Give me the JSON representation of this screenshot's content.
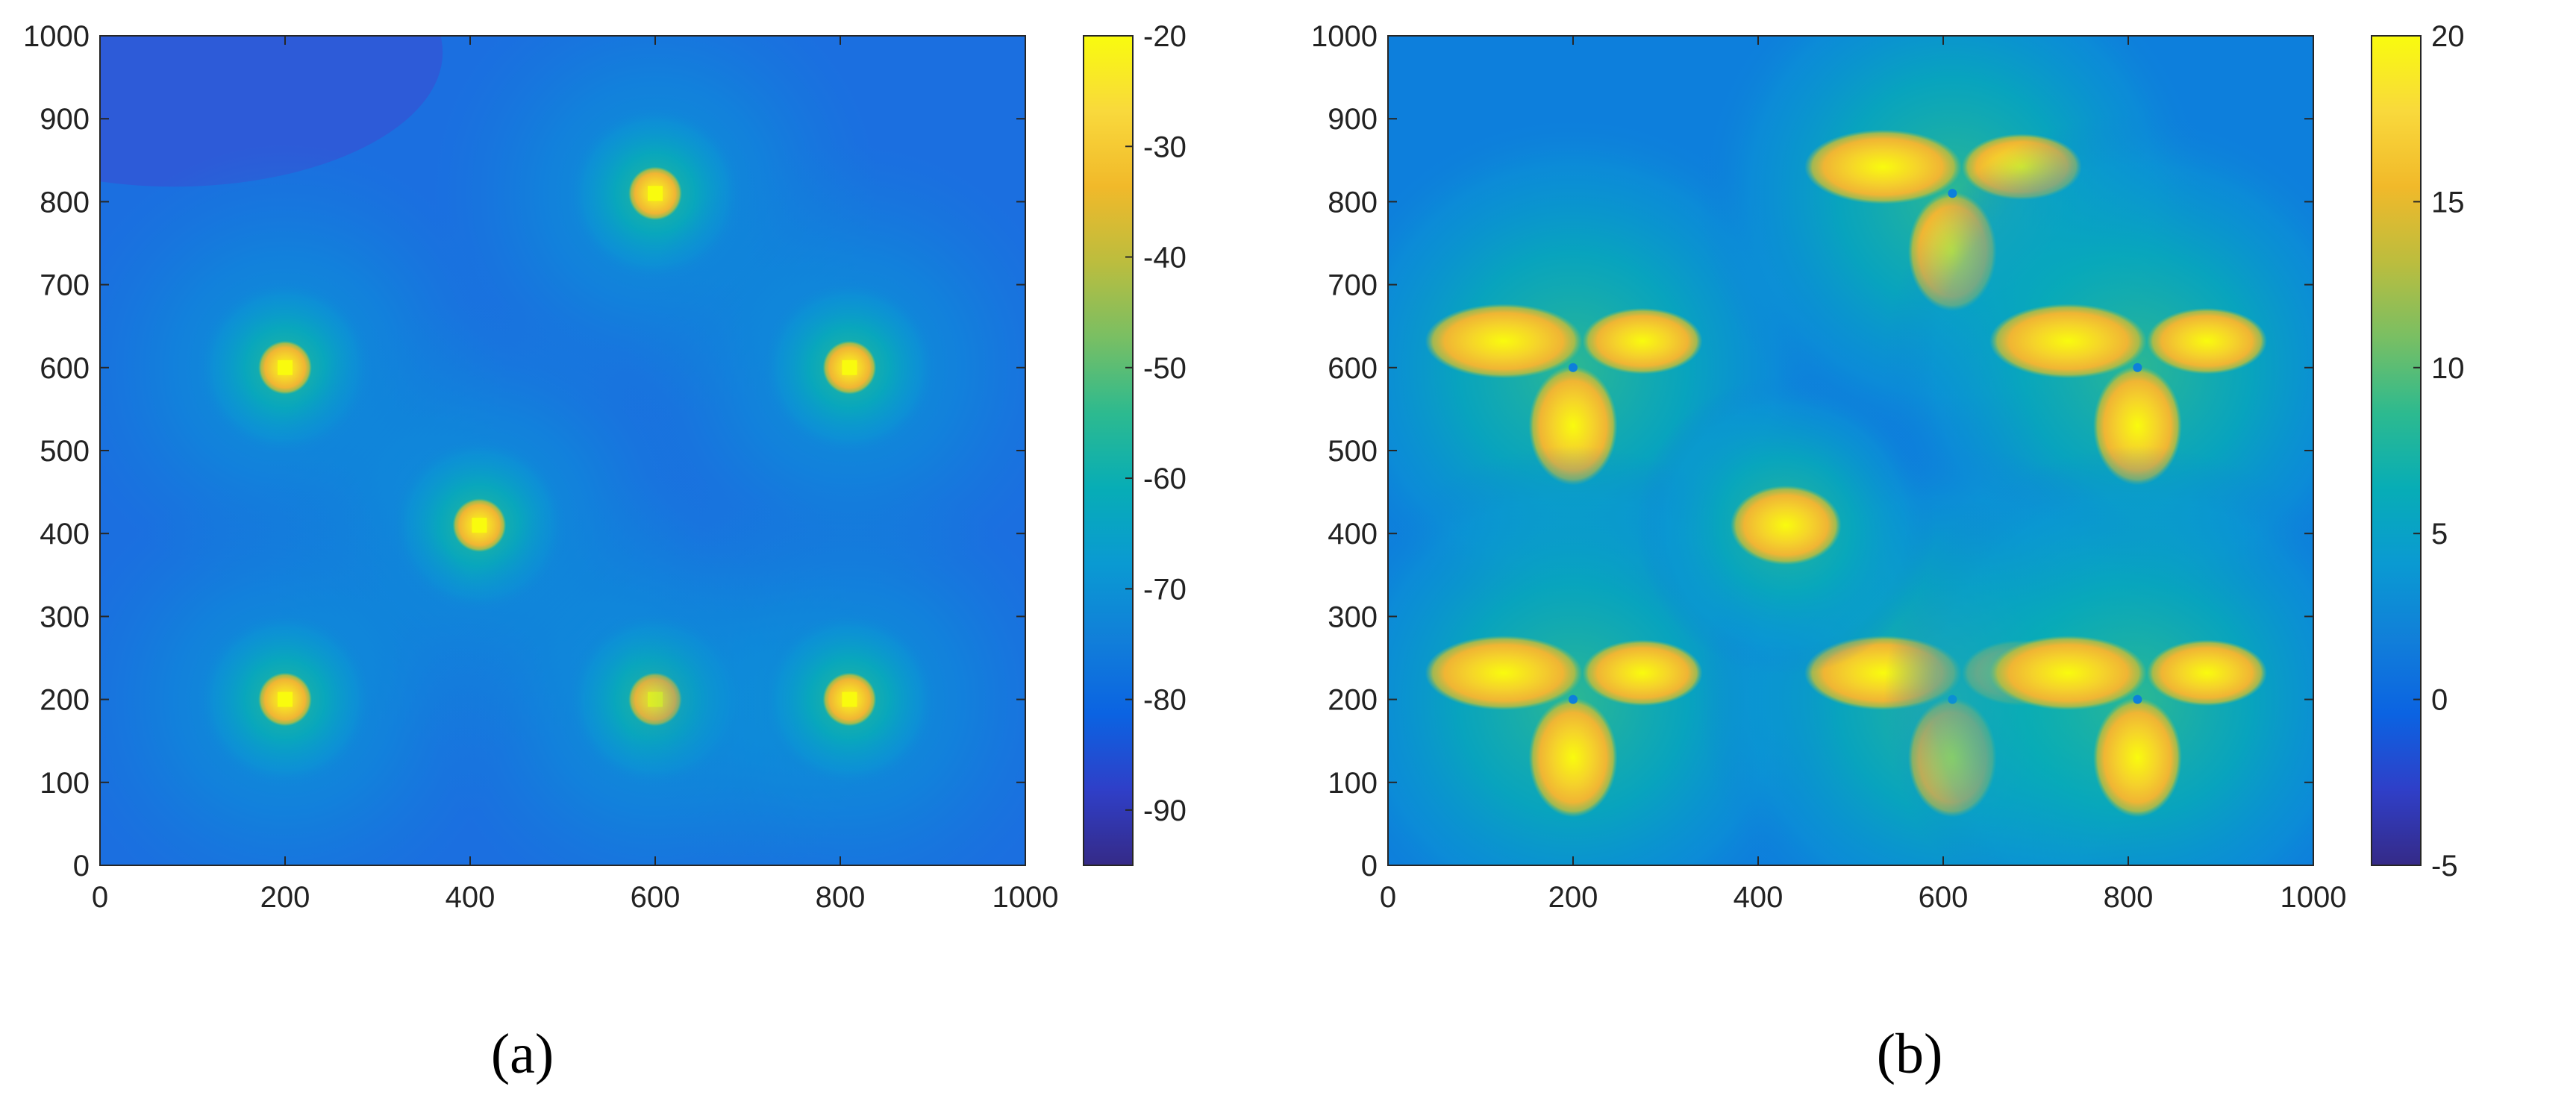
{
  "panels": [
    {
      "label": "(a)",
      "chart_data": {
        "type": "heatmap",
        "title": "",
        "xlabel": "",
        "ylabel": "",
        "xlim": [
          0,
          1000
        ],
        "ylim": [
          0,
          1000
        ],
        "x_ticks": [
          0,
          200,
          400,
          600,
          800,
          1000
        ],
        "y_ticks": [
          0,
          100,
          200,
          300,
          400,
          500,
          600,
          700,
          800,
          900,
          1000
        ],
        "colorbar": {
          "range": [
            -95,
            -20
          ],
          "ticks": [
            -20,
            -30,
            -40,
            -50,
            -60,
            -70,
            -80,
            -90
          ],
          "colormap": "parula"
        },
        "hotspots": [
          {
            "x": 200,
            "y": 600,
            "peak": -20
          },
          {
            "x": 600,
            "y": 810,
            "peak": -20
          },
          {
            "x": 810,
            "y": 600,
            "peak": -20
          },
          {
            "x": 410,
            "y": 410,
            "peak": -20
          },
          {
            "x": 200,
            "y": 200,
            "peak": -20
          },
          {
            "x": 600,
            "y": 200,
            "peak": -20
          },
          {
            "x": 810,
            "y": 200,
            "peak": -20
          }
        ]
      }
    },
    {
      "label": "(b)",
      "chart_data": {
        "type": "heatmap",
        "title": "",
        "xlabel": "",
        "ylabel": "",
        "xlim": [
          0,
          1000
        ],
        "ylim": [
          0,
          1000
        ],
        "x_ticks": [
          0,
          200,
          400,
          600,
          800,
          1000
        ],
        "y_ticks": [
          0,
          100,
          200,
          300,
          400,
          500,
          600,
          700,
          800,
          900,
          1000
        ],
        "colorbar": {
          "range": [
            -5,
            20
          ],
          "ticks": [
            20,
            15,
            10,
            5,
            0,
            -5
          ],
          "colormap": "parula"
        },
        "sources": [
          {
            "x": 200,
            "y": 600
          },
          {
            "x": 610,
            "y": 810
          },
          {
            "x": 810,
            "y": 600
          },
          {
            "x": 200,
            "y": 200
          },
          {
            "x": 610,
            "y": 200
          },
          {
            "x": 810,
            "y": 200
          }
        ],
        "blob": {
          "x": 430,
          "y": 410,
          "peak": 20
        }
      }
    }
  ]
}
